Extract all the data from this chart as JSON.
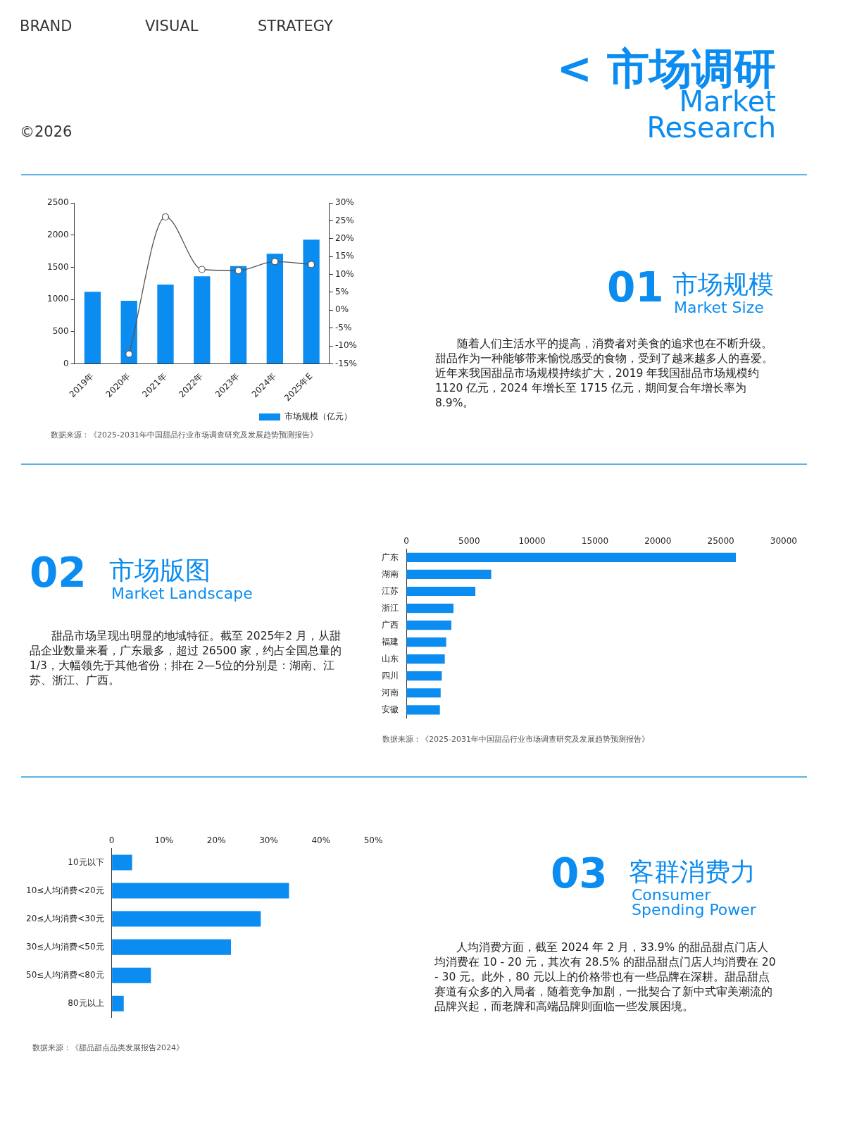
{
  "chart_data": [
    {
      "type": "other",
      "title": "< 市场调研",
      "subtitle": "Market Research",
      "annotations": [
        "BRAND",
        "VISUAL",
        "STRATEGY",
        "©2026"
      ]
    },
    {
      "type": "bar",
      "categories": [
        "2019年",
        "2020年",
        "2021年",
        "2022年",
        "2023年",
        "2024年",
        "2025年E"
      ],
      "series": [
        {
          "name": "市场规模（亿元）",
          "type": "bar",
          "color": "#0a8cf0",
          "values": [
            1120,
            980,
            1230,
            1360,
            1520,
            1710,
            1930
          ]
        },
        {
          "type": "line",
          "axis": "y2",
          "color": "#555555",
          "values": [
            null,
            -12.3,
            26.1,
            11.4,
            11.1,
            13.6,
            12.8
          ]
        }
      ],
      "ylim": [
        0,
        2500
      ],
      "yticks": [
        0,
        500,
        1000,
        1500,
        2000,
        2500
      ],
      "y2lim": [
        -15,
        30
      ],
      "y2ticks": [
        {
          "value": -15,
          "label": "-15%"
        },
        {
          "value": -10,
          "label": "-10%"
        },
        {
          "value": -5,
          "label": "-5%"
        },
        {
          "value": 0,
          "label": "0%"
        },
        {
          "value": 5,
          "label": "5%"
        },
        {
          "value": 10,
          "label": "10%"
        },
        {
          "value": 15,
          "label": "15%"
        },
        {
          "value": 20,
          "label": "20%"
        },
        {
          "value": 25,
          "label": "25%"
        },
        {
          "value": 30,
          "label": "30%"
        }
      ],
      "marker": "circle",
      "legend": "bottom right",
      "annotations": [
        "01",
        "市场规模",
        "Market Size",
        "随着人们主活水平的提高，消费者对美食的追求也在不断升级。甜品作为一种能够带来愉悦感受的食物，受到了越来越多人的喜爱。近年来我国甜品市场规模持续扩大，2019 年我国甜品市场规模约 1120 亿元，2024 年增长至 1715 亿元，期间复合年增长率为 8.9%。",
        "数据来源：《2025-2031年中国甜品行业市场调查研究及发展趋势预测报告》"
      ]
    },
    {
      "type": "bar",
      "orientation": "horizontal",
      "categories": [
        "广东",
        "湖南",
        "江苏",
        "浙江",
        "广西",
        "福建",
        "山东",
        "四川",
        "河南",
        "安徽"
      ],
      "values": [
        26200,
        6750,
        5490,
        3750,
        3580,
        3170,
        3060,
        2820,
        2730,
        2670
      ],
      "color": "#0a8cf0",
      "xlim": [
        0,
        30000
      ],
      "xticks": [
        0,
        5000,
        10000,
        15000,
        20000,
        25000,
        30000
      ],
      "annotations": [
        "02",
        "市场版图",
        "Market Landscape",
        "甜品市场呈现出明显的地域特征。截至 2025年2 月，从甜品企业数量来看，广东最多，超过 26500 家，约占全国总量的 1/3，大幅领先于其他省份；排在 2—5位的分别是：湖南、江苏、浙江、广西。",
        "数据来源：《2025-2031年中国甜品行业市场调查研究及发展趋势预测报告》"
      ]
    },
    {
      "type": "bar",
      "orientation": "horizontal",
      "categories": [
        "10元以下",
        "10≤人均消费<20元",
        "20≤人均消费<30元",
        "30≤人均消费<50元",
        "50≤人均消费<80元",
        "80元以上"
      ],
      "values": [
        3.9,
        33.9,
        28.5,
        22.8,
        7.5,
        2.3
      ],
      "color": "#0a8cf0",
      "xlim": [
        0,
        50
      ],
      "xticks": [
        0,
        {
          "value": 10,
          "label": "10%"
        },
        {
          "value": 20,
          "label": "20%"
        },
        {
          "value": 30,
          "label": "30%"
        },
        {
          "value": 40,
          "label": "40%"
        },
        {
          "value": 50,
          "label": "50%"
        }
      ],
      "annotations": [
        "03",
        "客群消费力",
        "Consumer Spending Power",
        "人均消费方面，截至 2024 年 2 月，33.9% 的甜品甜点门店人均消费在 10 - 20 元，其次有 28.5% 的甜品甜点门店人均消费在 20 - 30 元。此外，80 元以上的价格带也有一些品牌在深耕。甜品甜点赛道有众多的入局者，随着竞争加剧，一批契合了新中式审美潮流的品牌兴起，而老牌和高端品牌则面临一些发展困境。",
        "数据来源：《甜品甜点品类发展报告2024》"
      ]
    }
  ]
}
